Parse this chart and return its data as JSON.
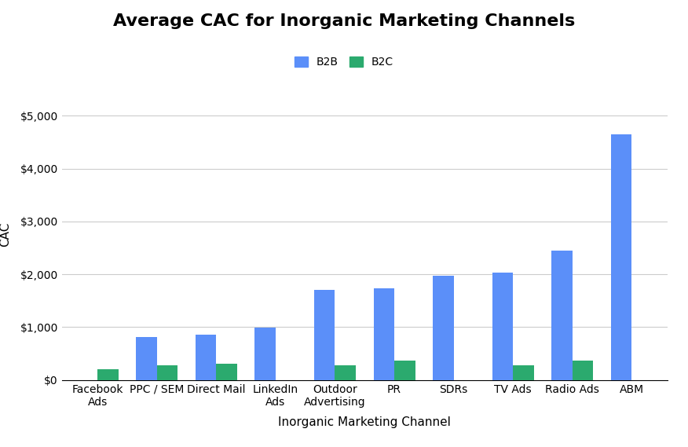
{
  "title": "Average CAC for Inorganic Marketing Channels",
  "xlabel": "Inorganic Marketing Channel",
  "ylabel": "CAC",
  "categories": [
    "Facebook\nAds",
    "PPC / SEM",
    "Direct Mail",
    "LinkedIn\nAds",
    "Outdoor\nAdvertising",
    "PR",
    "SDRs",
    "TV Ads",
    "Radio Ads",
    "ABM"
  ],
  "b2b_values": [
    0,
    820,
    860,
    990,
    1700,
    1730,
    1980,
    2030,
    2450,
    4650
  ],
  "b2c_values": [
    200,
    270,
    310,
    0,
    270,
    370,
    0,
    270,
    370,
    0
  ],
  "b2b_color": "#5B8FF9",
  "b2c_color": "#2BAA6E",
  "background_color": "#ffffff",
  "ylim": [
    0,
    5500
  ],
  "yticks": [
    0,
    1000,
    2000,
    3000,
    4000,
    5000
  ],
  "ytick_labels": [
    "$0",
    "$1,000",
    "$2,000",
    "$3,000",
    "$4,000",
    "$5,000"
  ],
  "legend_labels": [
    "B2B",
    "B2C"
  ],
  "title_fontsize": 16,
  "axis_label_fontsize": 11,
  "tick_fontsize": 10,
  "bar_width": 0.35,
  "grid_color": "#cccccc"
}
